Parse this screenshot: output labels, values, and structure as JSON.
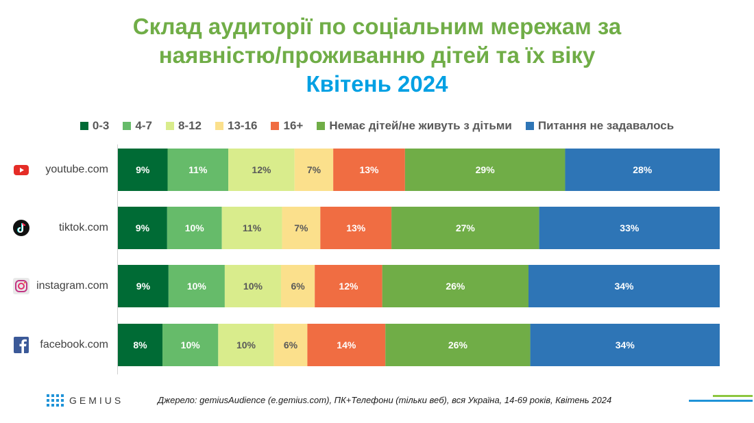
{
  "title": {
    "line1": "Склад аудиторії по соціальним мережам за",
    "line2": "наявністю/проживанню дітей та їх віку",
    "line3": "Квітень 2024"
  },
  "colors": {
    "title_green": "#70ad47",
    "title_blue": "#00a0e3",
    "seg": [
      "#006b35",
      "#66bb6a",
      "#d9ec8c",
      "#fbe08c",
      "#f06d42",
      "#70ad47",
      "#2e75b6"
    ],
    "label_text": [
      "#ffffff",
      "#ffffff",
      "#595959",
      "#595959",
      "#ffffff",
      "#ffffff",
      "#ffffff"
    ]
  },
  "legend": [
    "0-3",
    "4-7",
    "8-12",
    "13-16",
    "16+",
    "Немає дітей/не живуть з дітьми",
    "Питання не задавалось"
  ],
  "rows": [
    {
      "name": "youtube.com",
      "icon": "youtube-icon"
    },
    {
      "name": "tiktok.com",
      "icon": "tiktok-icon"
    },
    {
      "name": "instagram.com",
      "icon": "instagram-icon"
    },
    {
      "name": "facebook.com",
      "icon": "facebook-icon"
    }
  ],
  "chart_data": {
    "type": "bar",
    "orientation": "horizontal",
    "stacked": "100%",
    "categories": [
      "youtube.com",
      "tiktok.com",
      "instagram.com",
      "facebook.com"
    ],
    "series": [
      {
        "name": "0-3",
        "values": [
          9,
          9,
          9,
          8
        ]
      },
      {
        "name": "4-7",
        "values": [
          11,
          10,
          10,
          10
        ]
      },
      {
        "name": "8-12",
        "values": [
          12,
          11,
          10,
          10
        ]
      },
      {
        "name": "13-16",
        "values": [
          7,
          7,
          6,
          6
        ]
      },
      {
        "name": "16+",
        "values": [
          13,
          13,
          12,
          14
        ]
      },
      {
        "name": "Немає дітей/не живуть з дітьми",
        "values": [
          29,
          27,
          26,
          26
        ]
      },
      {
        "name": "Питання не задавалось",
        "values": [
          28,
          33,
          34,
          34
        ]
      }
    ],
    "value_suffix": "%",
    "legend_position": "top",
    "grid": false
  },
  "footer": {
    "logo": "GEMIUS",
    "source": "Джерело: gemiusAudience (e.gemius.com), ПК+Телефони (тільки веб), вся Україна, 14-69 років, Квітень 2024"
  }
}
